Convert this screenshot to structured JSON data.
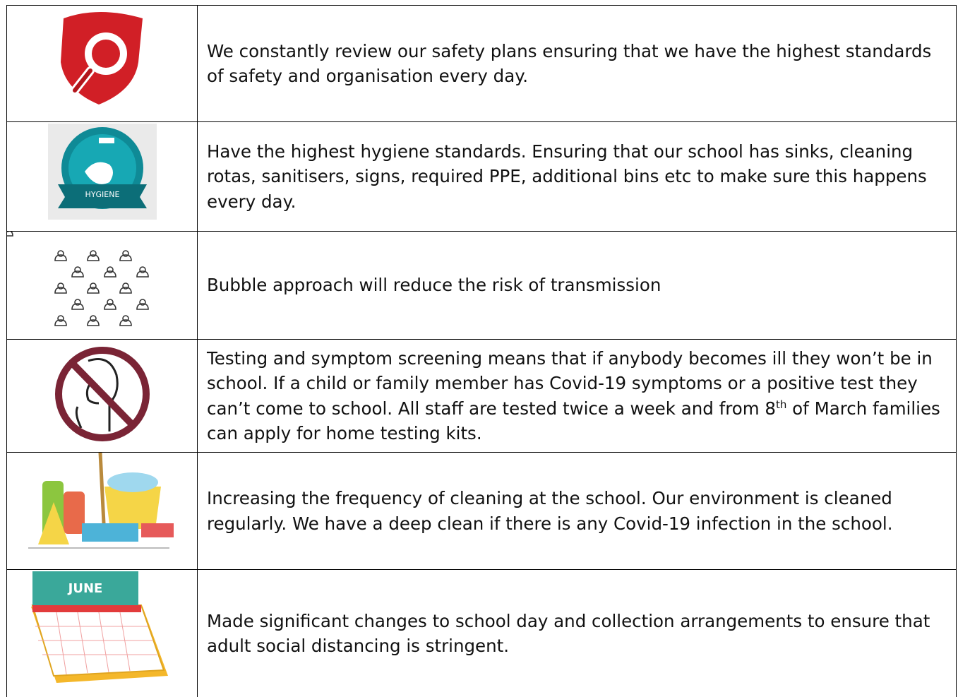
{
  "table": {
    "rows": [
      {
        "text": "We constantly review our safety plans ensuring that we have the highest standards of safety and organisation every day."
      },
      {
        "icon_label": "HYGIENE",
        "text": "Have the highest hygiene standards.  Ensuring that our school has sinks, cleaning rotas, sanitisers, signs, required PPE, additional bins etc to make sure this happens every day."
      },
      {
        "text": "Bubble approach will reduce the risk of transmission"
      },
      {
        "text": "Testing and symptom screening means that if anybody becomes ill they won’t be in school.   If a child or family member has Covid-19 symptoms or a positive test they can’t come to school.  All staff are tested twice a week and from 8",
        "superscript": "th",
        "text_continued": " of March families can apply for home testing kits."
      },
      {
        "text": "Increasing the frequency of cleaning at the school.  Our environment is cleaned regularly.  We have a deep clean if there is any Covid-19 infection in the school."
      },
      {
        "icon_label": "JUNE",
        "text": "Made significant changes to school day and collection arrangements to ensure that adult social distancing is stringent."
      }
    ]
  }
}
